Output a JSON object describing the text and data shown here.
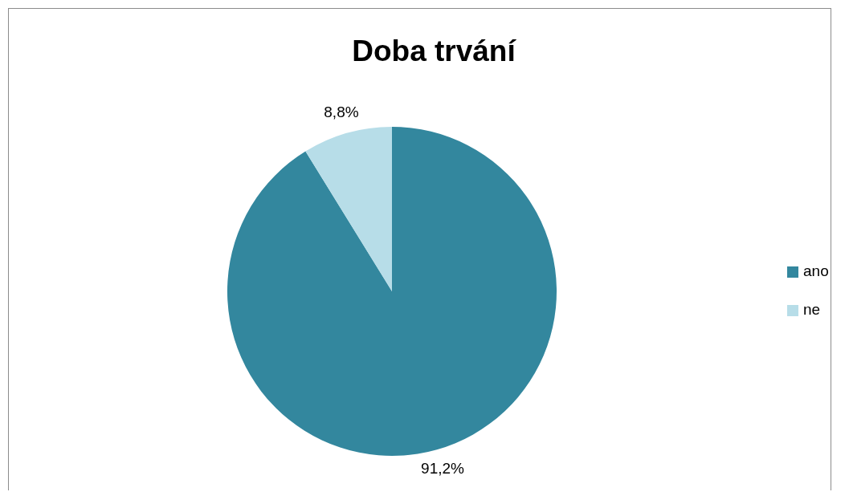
{
  "chart_data": {
    "type": "pie",
    "title": "Doba trvání",
    "categories": [
      "ano",
      "ne"
    ],
    "values": [
      91.2,
      8.8
    ],
    "colors": [
      "#33879e",
      "#b7dde8"
    ],
    "value_labels": [
      "91,2%",
      "8,8%"
    ],
    "legend": "right"
  }
}
